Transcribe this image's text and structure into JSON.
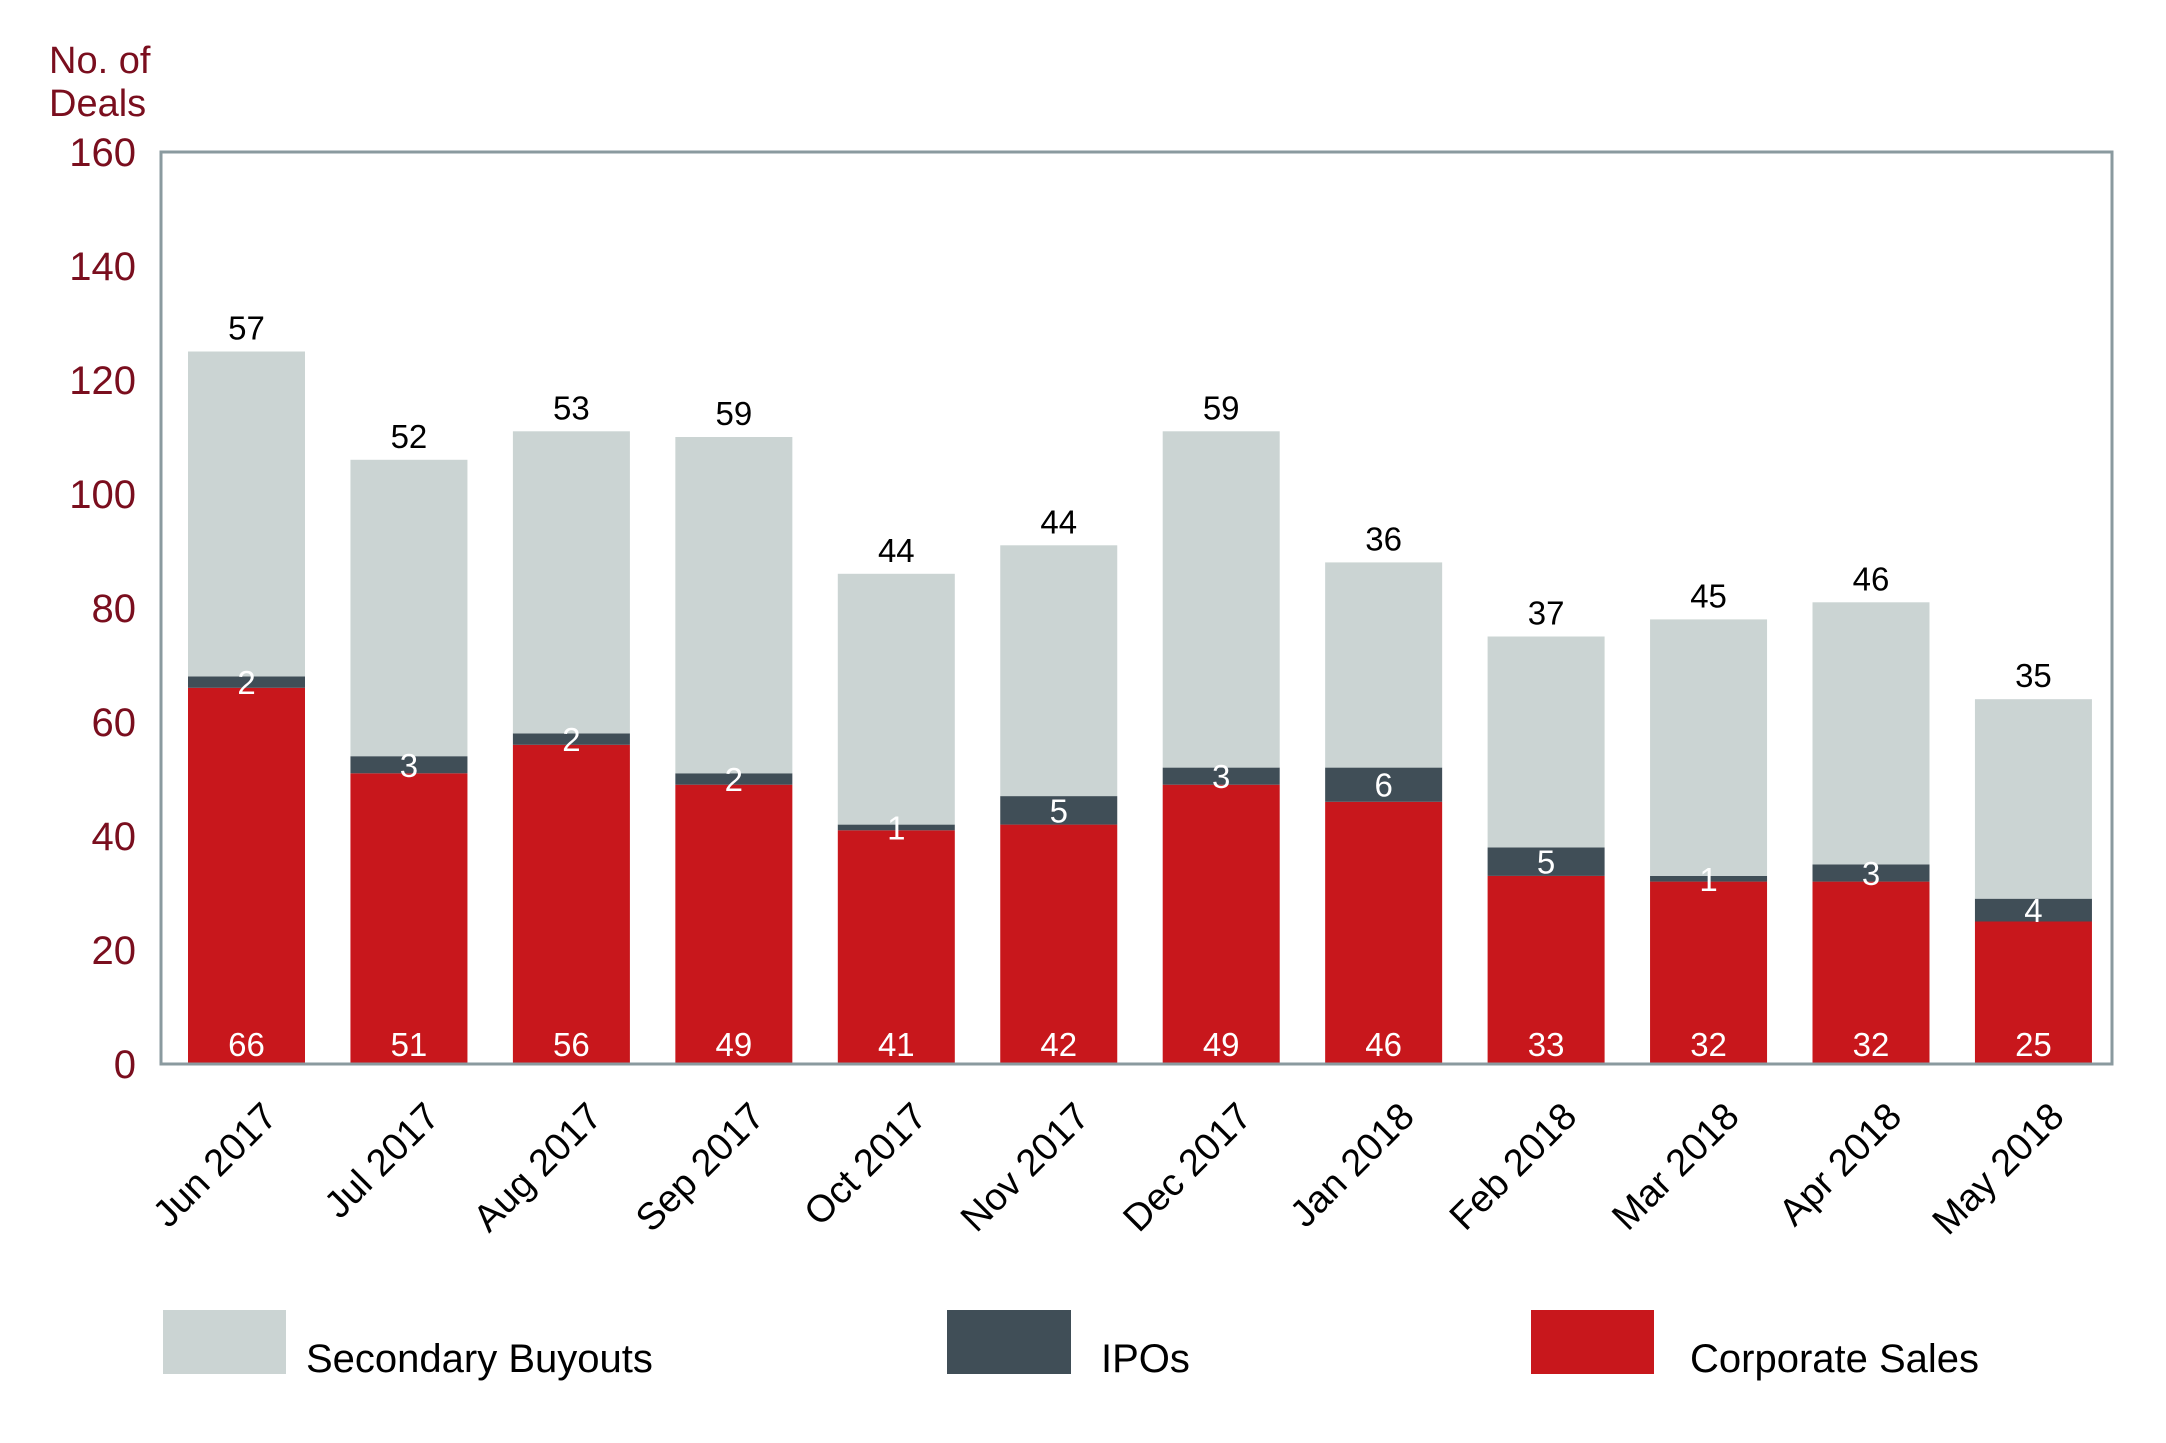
{
  "colors": {
    "secondary_buyouts": "#cbd4d3",
    "ipos": "#404e57",
    "corporate_sales": "#c8171c",
    "axis_text": "#7a0e1e",
    "frame": "#8a9a9f"
  },
  "chart_data": {
    "type": "bar",
    "stacked": true,
    "title": "",
    "ylabel_lines": [
      "No. of",
      "Deals"
    ],
    "xlabel": "",
    "ylim": [
      0,
      160
    ],
    "yticks": [
      0,
      20,
      40,
      60,
      80,
      100,
      120,
      140,
      160
    ],
    "ytick_labels": [
      "0",
      "20",
      "40",
      "60",
      "80",
      "100",
      "120",
      "140",
      "160"
    ],
    "grid": false,
    "legend_placement": "bottom",
    "categories": [
      "Jun 2017",
      "Jul 2017",
      "Aug 2017",
      "Sep 2017",
      "Oct 2017",
      "Nov 2017",
      "Dec 2017",
      "Jan 2018",
      "Feb 2018",
      "Mar 2018",
      "Apr 2018",
      "May 2018"
    ],
    "series": [
      {
        "name": "Corporate Sales",
        "key": "corporate_sales",
        "values": [
          66,
          51,
          56,
          49,
          41,
          42,
          49,
          46,
          33,
          32,
          32,
          25
        ]
      },
      {
        "name": "IPOs",
        "key": "ipos",
        "values": [
          2,
          3,
          2,
          2,
          1,
          5,
          3,
          6,
          5,
          1,
          3,
          4
        ]
      },
      {
        "name": "Secondary Buyouts",
        "key": "secondary_buyouts",
        "values": [
          57,
          52,
          53,
          59,
          44,
          44,
          59,
          36,
          37,
          45,
          46,
          35
        ]
      }
    ],
    "legend": [
      "Secondary Buyouts",
      "IPOs",
      "Corporate Sales"
    ]
  }
}
